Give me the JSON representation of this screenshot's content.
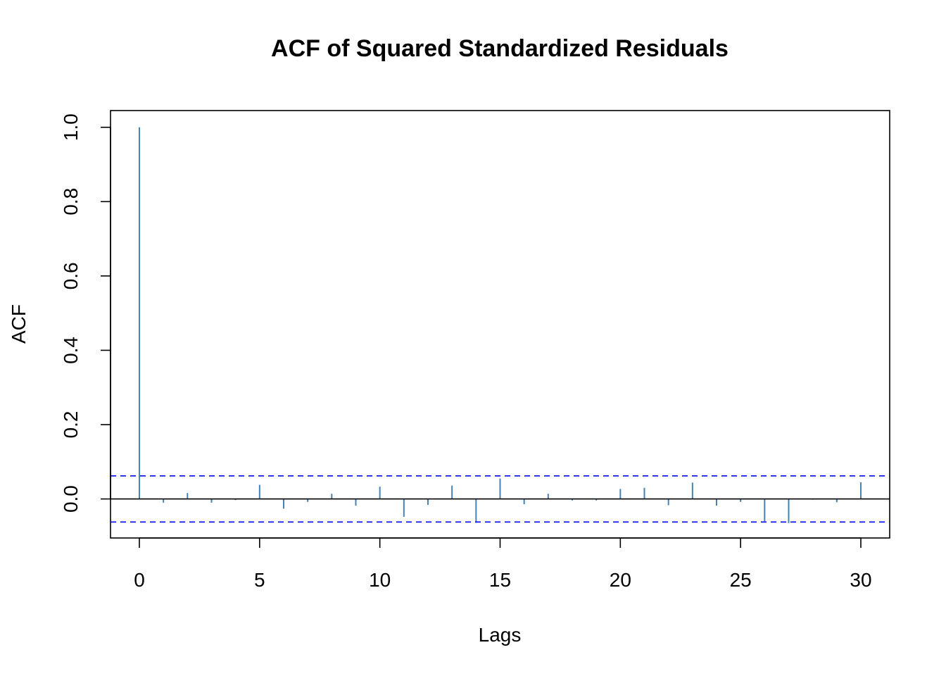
{
  "chart_data": {
    "type": "bar",
    "title": "ACF of Squared Standardized Residuals",
    "xlabel": "Lags",
    "ylabel": "ACF",
    "xlim": [
      -1.2,
      31.2
    ],
    "ylim": [
      -0.105,
      1.045
    ],
    "xticks": [
      0,
      5,
      10,
      15,
      20,
      25,
      30
    ],
    "yticks": [
      0.0,
      0.2,
      0.4,
      0.6,
      0.8,
      1.0
    ],
    "x": [
      0,
      1,
      2,
      3,
      4,
      5,
      6,
      7,
      8,
      9,
      10,
      11,
      12,
      13,
      14,
      15,
      16,
      17,
      18,
      19,
      20,
      21,
      22,
      23,
      24,
      25,
      26,
      27,
      28,
      29,
      30
    ],
    "values": [
      1.0,
      -0.01,
      0.016,
      -0.01,
      -0.003,
      0.038,
      -0.026,
      -0.008,
      0.014,
      -0.018,
      0.033,
      -0.048,
      -0.016,
      0.036,
      -0.064,
      0.055,
      -0.014,
      0.014,
      -0.004,
      -0.004,
      0.027,
      0.03,
      -0.017,
      0.044,
      -0.018,
      -0.008,
      -0.06,
      -0.065,
      -0.002,
      -0.009,
      0.045
    ],
    "confidence_band": [
      0.062,
      -0.062
    ],
    "colors": {
      "bars": "#4682b4",
      "band": "#0000ff",
      "zero_line": "#000000"
    },
    "grid": false
  }
}
